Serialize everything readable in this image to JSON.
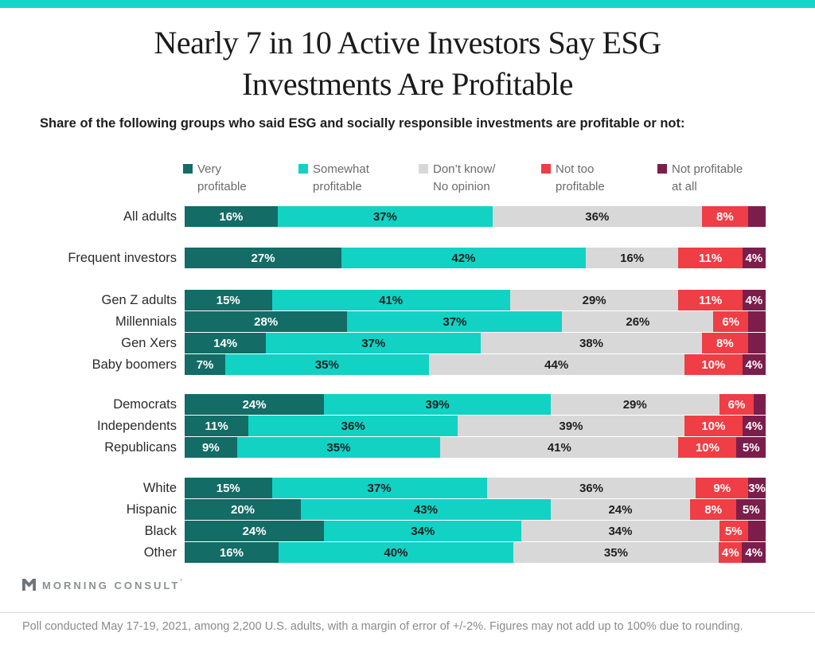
{
  "page": {
    "title": "Nearly 7 in 10 Active Investors Say ESG\nInvestments Are Profitable",
    "subtitle": "Share of the following groups who said ESG and socially responsible investments are profitable or not:",
    "footer_note": "Poll conducted May 17-19, 2021, among 2,200 U.S. adults, with a margin of error of +/-2%. Figures may not add up to 100% due to rounding.",
    "brand": "MORNING CONSULT",
    "brand_mark": "’",
    "accent_strip_color": "#17d4c9"
  },
  "chart_data": {
    "type": "bar",
    "variant": "horizontal-stacked",
    "unit": "%",
    "xlim": [
      0,
      100
    ],
    "grid": false,
    "legend_position": "top",
    "series": [
      {
        "name": "Very profitable",
        "legend_label": "Very\nprofitable",
        "color": "#136c66",
        "label_color": "#ffffff"
      },
      {
        "name": "Somewhat profitable",
        "legend_label": "Somewhat\nprofitable",
        "color": "#12d2c4",
        "label_color": "#1e1e1e"
      },
      {
        "name": "Don’t know/No opinion",
        "legend_label": "Don’t know/\nNo opinion",
        "color": "#d8d8d8",
        "label_color": "#1e1e1e"
      },
      {
        "name": "Not too profitable",
        "legend_label": "Not too\nprofitable",
        "color": "#ef3e45",
        "label_color": "#ffffff"
      },
      {
        "name": "Not profitable at all",
        "legend_label": "Not profitable\nat all",
        "color": "#7c1e4c",
        "label_color": "#ffffff"
      }
    ],
    "groups": [
      {
        "rows": [
          {
            "label": "All adults",
            "values": [
              16,
              37,
              36,
              8,
              3
            ],
            "shown": [
              1,
              1,
              1,
              1,
              0
            ]
          }
        ]
      },
      {
        "rows": [
          {
            "label": "Frequent investors",
            "values": [
              27,
              42,
              16,
              11,
              4
            ],
            "shown": [
              1,
              1,
              1,
              1,
              1
            ]
          }
        ]
      },
      {
        "rows": [
          {
            "label": "Gen Z adults",
            "values": [
              15,
              41,
              29,
              11,
              4
            ],
            "shown": [
              1,
              1,
              1,
              1,
              1
            ]
          },
          {
            "label": "Millennials",
            "values": [
              28,
              37,
              26,
              6,
              3
            ],
            "shown": [
              1,
              1,
              1,
              1,
              0
            ]
          },
          {
            "label": "Gen Xers",
            "values": [
              14,
              37,
              38,
              8,
              3
            ],
            "shown": [
              1,
              1,
              1,
              1,
              0
            ]
          },
          {
            "label": "Baby boomers",
            "values": [
              7,
              35,
              44,
              10,
              4
            ],
            "shown": [
              1,
              1,
              1,
              1,
              1
            ]
          }
        ]
      },
      {
        "rows": [
          {
            "label": "Democrats",
            "values": [
              24,
              39,
              29,
              6,
              2
            ],
            "shown": [
              1,
              1,
              1,
              1,
              0
            ]
          },
          {
            "label": "Independents",
            "values": [
              11,
              36,
              39,
              10,
              4
            ],
            "shown": [
              1,
              1,
              1,
              1,
              1
            ]
          },
          {
            "label": "Republicans",
            "values": [
              9,
              35,
              41,
              10,
              5
            ],
            "shown": [
              1,
              1,
              1,
              1,
              1
            ]
          }
        ]
      },
      {
        "rows": [
          {
            "label": "White",
            "values": [
              15,
              37,
              36,
              9,
              3
            ],
            "shown": [
              1,
              1,
              1,
              1,
              1
            ]
          },
          {
            "label": "Hispanic",
            "values": [
              20,
              43,
              24,
              8,
              5
            ],
            "shown": [
              1,
              1,
              1,
              1,
              1
            ]
          },
          {
            "label": "Black",
            "values": [
              24,
              34,
              34,
              5,
              3
            ],
            "shown": [
              1,
              1,
              1,
              1,
              0
            ]
          },
          {
            "label": "Other",
            "values": [
              16,
              40,
              35,
              4,
              4
            ],
            "shown": [
              1,
              1,
              1,
              1,
              1
            ]
          }
        ]
      }
    ]
  }
}
